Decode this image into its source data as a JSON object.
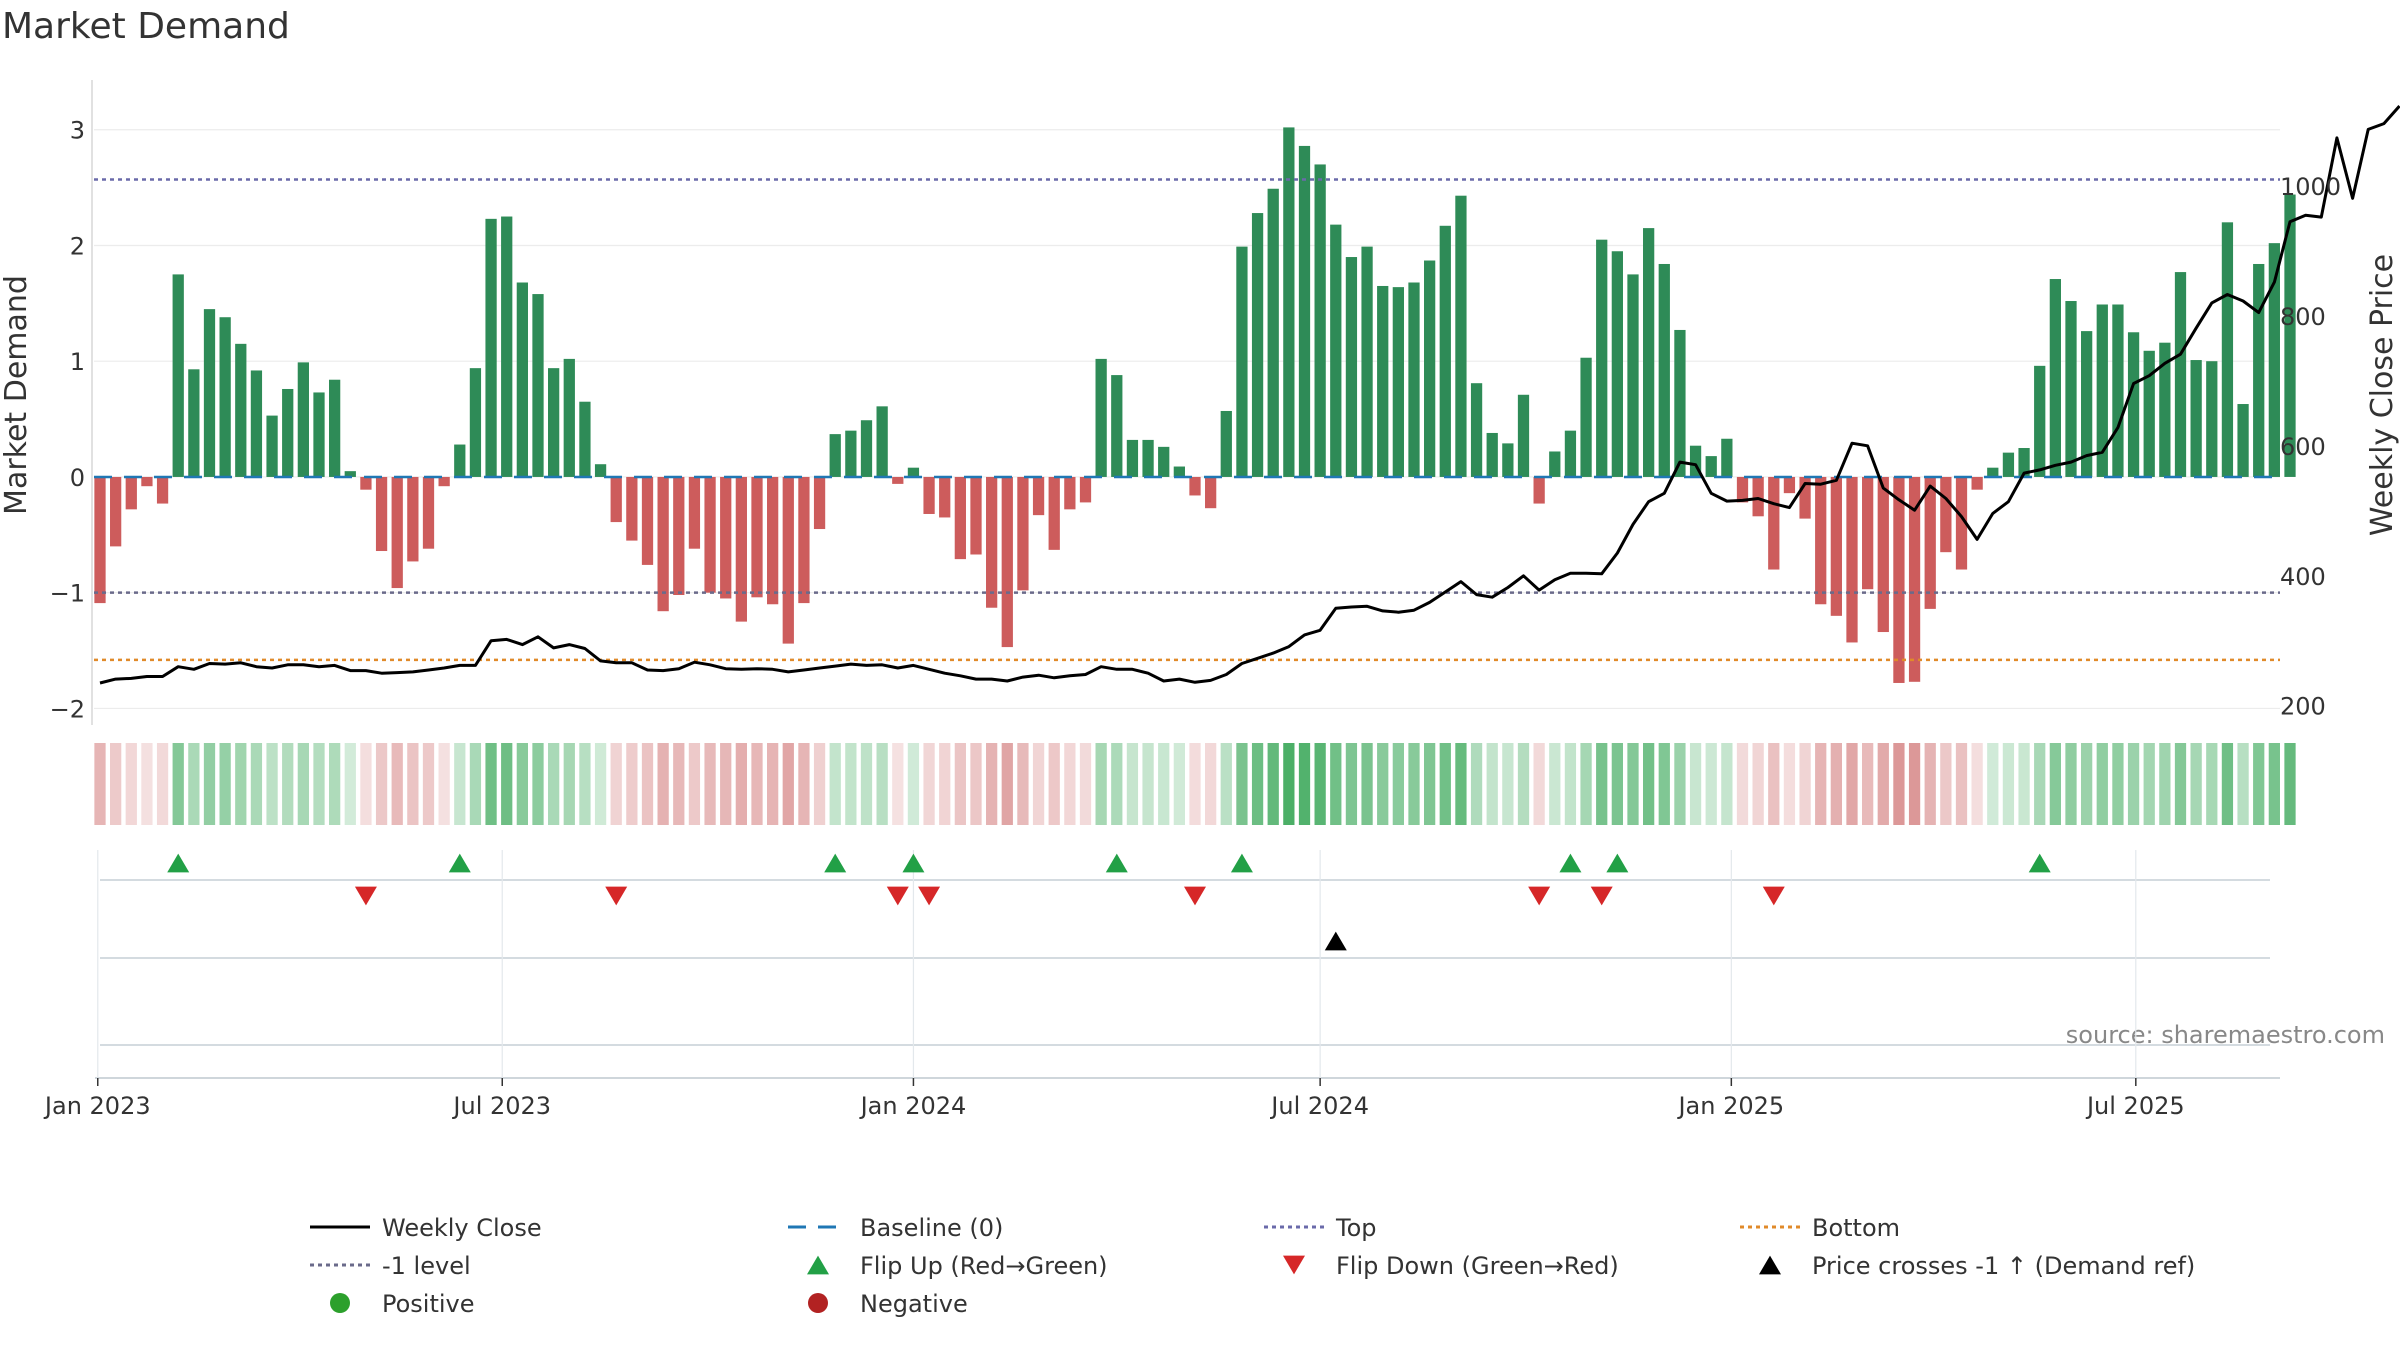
{
  "chart_data": {
    "type": "bar",
    "title": "Market Demand",
    "ylabel": "Market Demand",
    "y2label": "Weekly Close Price",
    "ylim": [
      -2.1,
      3.3
    ],
    "y2lim": [
      178,
      1140
    ],
    "yticks": [
      -2,
      -1,
      0,
      1,
      2,
      3
    ],
    "y2ticks": [
      200,
      400,
      600,
      800,
      1000
    ],
    "start_date": "2023-01-02",
    "x_ticks": [
      {
        "label": "Jan 2023",
        "date": "2023-01-01"
      },
      {
        "label": "Jul 2023",
        "date": "2023-07-01"
      },
      {
        "label": "Jan 2024",
        "date": "2024-01-01"
      },
      {
        "label": "Jul 2024",
        "date": "2024-07-01"
      },
      {
        "label": "Jan 2025",
        "date": "2025-01-01"
      },
      {
        "label": "Jul 2025",
        "date": "2025-07-01"
      }
    ],
    "reference_lines": {
      "top": 2.57,
      "bottom": -1.58,
      "minus_one": -1,
      "baseline": 0
    },
    "demand": [
      -1.09,
      -0.6,
      -0.28,
      -0.08,
      -0.23,
      1.75,
      0.93,
      1.45,
      1.38,
      1.15,
      0.92,
      0.53,
      0.76,
      0.99,
      0.73,
      0.84,
      0.05,
      -0.11,
      -0.64,
      -0.96,
      -0.73,
      -0.62,
      -0.08,
      0.28,
      0.94,
      2.23,
      2.25,
      1.68,
      1.58,
      0.94,
      1.02,
      0.65,
      0.11,
      -0.39,
      -0.55,
      -0.76,
      -1.16,
      -1.02,
      -0.62,
      -1.0,
      -1.05,
      -1.25,
      -1.04,
      -1.1,
      -1.44,
      -1.09,
      -0.45,
      0.37,
      0.4,
      0.49,
      0.61,
      -0.06,
      0.08,
      -0.32,
      -0.35,
      -0.71,
      -0.67,
      -1.13,
      -1.47,
      -0.98,
      -0.33,
      -0.63,
      -0.28,
      -0.22,
      1.02,
      0.88,
      0.32,
      0.32,
      0.26,
      0.09,
      -0.16,
      -0.27,
      0.57,
      1.99,
      2.28,
      2.49,
      3.02,
      2.86,
      2.7,
      2.18,
      1.9,
      1.99,
      1.65,
      1.64,
      1.68,
      1.87,
      2.17,
      2.43,
      0.81,
      0.38,
      0.29,
      0.71,
      -0.23,
      0.22,
      0.4,
      1.03,
      2.05,
      1.95,
      1.75,
      2.15,
      1.84,
      1.27,
      0.27,
      0.18,
      0.33,
      -0.22,
      -0.34,
      -0.8,
      -0.14,
      -0.36,
      -1.1,
      -1.2,
      -1.43,
      -0.97,
      -1.34,
      -1.78,
      -1.77,
      -1.14,
      -0.65,
      -0.8,
      -0.11,
      0.08,
      0.21,
      0.25,
      0.96,
      1.71,
      1.52,
      1.26,
      1.49,
      1.49,
      1.25,
      1.09,
      1.16,
      1.77,
      1.01,
      1.0,
      2.2,
      0.63,
      1.84,
      2.02,
      2.44
    ],
    "close": [
      235,
      241,
      242,
      245,
      245,
      260,
      256,
      265,
      264,
      266,
      260,
      258,
      263,
      263,
      260,
      262,
      254,
      254,
      250,
      251,
      252,
      255,
      258,
      262,
      262,
      300,
      302,
      294,
      306,
      289,
      294,
      288,
      269,
      266,
      266,
      255,
      254,
      257,
      267,
      263,
      257,
      256,
      257,
      256,
      252,
      255,
      258,
      261,
      264,
      262,
      263,
      258,
      262,
      256,
      250,
      246,
      241,
      241,
      238,
      244,
      247,
      243,
      246,
      248,
      260,
      256,
      256,
      250,
      238,
      241,
      236,
      239,
      248,
      265,
      273,
      281,
      291,
      309,
      316,
      350,
      352,
      353,
      346,
      344,
      347,
      359,
      375,
      391,
      371,
      367,
      382,
      400,
      378,
      394,
      404,
      404,
      403,
      435,
      479,
      514,
      527,
      575,
      571,
      527,
      515,
      516,
      519,
      511,
      505,
      542,
      541,
      547,
      604,
      600,
      535,
      517,
      501,
      538,
      519,
      491,
      456,
      496,
      514,
      558,
      563,
      570,
      575,
      585,
      590,
      628,
      696,
      708,
      727,
      741,
      781,
      820,
      833,
      823,
      805,
      852,
      945,
      955,
      952,
      1074,
      981,
      1087,
      1096,
      1123
    ],
    "flip_up_weeks": [
      5,
      23,
      47,
      52,
      65,
      73,
      94,
      97,
      124
    ],
    "flip_down_weeks": [
      17,
      33,
      51,
      53,
      70,
      92,
      96,
      107
    ],
    "price_cross_weeks": [
      79
    ],
    "colors": {
      "positive": "#2e8b57",
      "negative": "#cd5c5c",
      "weekly_close": "#000000",
      "baseline": "#1f77b4",
      "top": "#6a6aaa",
      "minus_one": "#6a6a8a",
      "bottom": "#e08a2a",
      "flip_up": "#22a046",
      "flip_down": "#d62728",
      "cross": "#000000",
      "positive_dot": "#2ca02c",
      "negative_dot": "#b22222"
    },
    "legend": [
      {
        "label": "Weekly Close",
        "kind": "line-solid",
        "color": "#000000"
      },
      {
        "label": "Baseline (0)",
        "kind": "line-dash",
        "color": "#1f77b4"
      },
      {
        "label": "Top",
        "kind": "line-dot",
        "color": "#6a6aaa"
      },
      {
        "label": "Bottom",
        "kind": "line-dot",
        "color": "#e08a2a"
      },
      {
        "label": "-1 level",
        "kind": "line-dot",
        "color": "#6a6a8a"
      },
      {
        "label": "Flip Up (Red→Green)",
        "kind": "tri-up",
        "color": "#22a046"
      },
      {
        "label": "Flip Down (Green→Red)",
        "kind": "tri-down",
        "color": "#d62728"
      },
      {
        "label": "Price crosses -1 ↑ (Demand ref)",
        "kind": "tri-up",
        "color": "#000000"
      },
      {
        "label": "Positive",
        "kind": "dot",
        "color": "#2ca02c"
      },
      {
        "label": "Negative",
        "kind": "dot",
        "color": "#b22222"
      }
    ],
    "source": "source: sharemaestro.com"
  }
}
